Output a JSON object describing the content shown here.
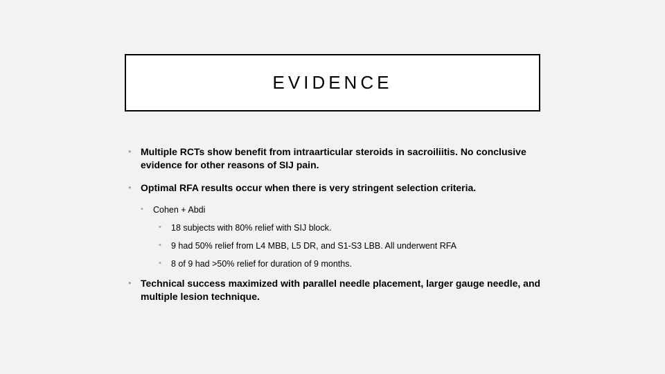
{
  "slide": {
    "title": "EVIDENCE",
    "background_color": "#f2f2f2",
    "title_box": {
      "border_color": "#000000",
      "background_color": "#ffffff",
      "font_size": 26,
      "letter_spacing": 5
    },
    "bullets": {
      "b1": "Multiple RCTs show benefit from intraarticular steroids in sacroiliitis. No conclusive evidence for other reasons of SIJ pain.",
      "b2": "Optimal RFA results occur when there is very stringent selection criteria.",
      "b2_1": "Cohen + Abdi",
      "b2_1_1": "18 subjects with 80% relief with SIJ block.",
      "b2_1_2": "9 had 50% relief from L4 MBB, L5 DR, and S1-S3 LBB. All underwent RFA",
      "b2_1_3": "8 of 9 had >50% relief for duration of 9 months.",
      "b3": "Technical success maximized with parallel needle placement, larger gauge needle, and multiple lesion technique."
    },
    "bullet_color": "#a6a6a6",
    "text_color": "#000000",
    "l1_fontsize": 14,
    "l1_fontweight": 700,
    "l2_fontsize": 12.5,
    "l3_fontsize": 12.5
  }
}
